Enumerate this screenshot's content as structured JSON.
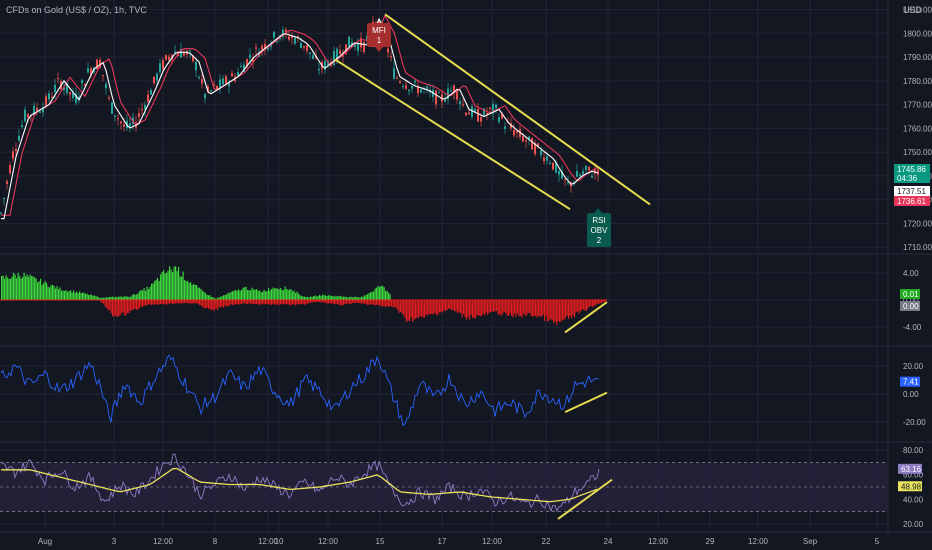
{
  "header": {
    "title": "CFDs on Gold (US$ / OZ), 1h, TVC",
    "currency": "USD"
  },
  "colors": {
    "background": "#131722",
    "grid": "#1f2433",
    "candle_up": "#26a69a",
    "candle_down": "#ef5350",
    "channel": "#e7dc4f",
    "ma_fast": "#ffffff",
    "ma_slow": "#e8365a",
    "hist_up": "#3bd63b",
    "hist_down": "#e31d1d",
    "cci_line": "#2962ff",
    "rsi_line": "#8e7cc3",
    "rsi_ma": "#e8e35b",
    "rsi_band": "#2a2440"
  },
  "chart_data": [
    {
      "type": "candlestick",
      "title": "CFDs on Gold (US$ / OZ), 1h, TVC",
      "ylabel": "USD",
      "ylim": [
        1708,
        1814
      ],
      "y_ticks": [
        "1810.00",
        "1800.00",
        "1790.00",
        "1780.00",
        "1770.00",
        "1760.00",
        "1750.00",
        "1740.00",
        "1730.00",
        "1720.00",
        "1710.00"
      ],
      "x_ticks": [
        "Aug",
        "3",
        "12:00",
        "8",
        "12:00",
        "10",
        "12:00",
        "15",
        "17",
        "12:00",
        "22",
        "24",
        "12:00",
        "29",
        "12:00",
        "Sep",
        "5"
      ],
      "close_path": [
        [
          0,
          1722
        ],
        [
          12,
          1748
        ],
        [
          25,
          1765
        ],
        [
          45,
          1770
        ],
        [
          60,
          1780
        ],
        [
          75,
          1772
        ],
        [
          90,
          1785
        ],
        [
          100,
          1788
        ],
        [
          110,
          1770
        ],
        [
          125,
          1760
        ],
        [
          135,
          1762
        ],
        [
          150,
          1775
        ],
        [
          160,
          1785
        ],
        [
          172,
          1792
        ],
        [
          185,
          1792
        ],
        [
          195,
          1788
        ],
        [
          205,
          1774
        ],
        [
          220,
          1778
        ],
        [
          235,
          1782
        ],
        [
          250,
          1790
        ],
        [
          265,
          1795
        ],
        [
          280,
          1800
        ],
        [
          295,
          1798
        ],
        [
          305,
          1795
        ],
        [
          320,
          1785
        ],
        [
          335,
          1790
        ],
        [
          350,
          1796
        ],
        [
          365,
          1795
        ],
        [
          375,
          1806
        ],
        [
          385,
          1798
        ],
        [
          395,
          1782
        ],
        [
          410,
          1778
        ],
        [
          425,
          1776
        ],
        [
          440,
          1772
        ],
        [
          455,
          1777
        ],
        [
          465,
          1768
        ],
        [
          480,
          1765
        ],
        [
          495,
          1768
        ],
        [
          505,
          1762
        ],
        [
          520,
          1757
        ],
        [
          535,
          1752
        ],
        [
          550,
          1747
        ],
        [
          560,
          1740
        ],
        [
          568,
          1736
        ],
        [
          578,
          1740
        ],
        [
          588,
          1742
        ],
        [
          596,
          1741
        ],
        [
          600,
          1745
        ]
      ],
      "channel_lines": [
        {
          "from": [
            385,
            1808
          ],
          "to": [
            650,
            1728
          ]
        },
        {
          "from": [
            335,
            1789
          ],
          "to": [
            570,
            1726
          ]
        }
      ],
      "price_labels": [
        {
          "value": "1745.86",
          "color": "#089981"
        },
        {
          "value": "04:36",
          "color": "#089981"
        },
        {
          "value": "1737.51",
          "color": "#ffffff"
        },
        {
          "value": "1736.61",
          "color": "#e8365a"
        }
      ],
      "signals": [
        {
          "label": "MFI",
          "sub": "1",
          "color": "#a52e2e"
        },
        {
          "label": "RSI",
          "sub2": "OBV",
          "sub": "2",
          "color": "#0a5a4e"
        }
      ]
    },
    {
      "type": "bar",
      "y_ticks": [
        "4.00",
        "0.00",
        "-4.00"
      ],
      "ylim": [
        -6.5,
        6.5
      ],
      "labels": [
        {
          "value": "0.01",
          "color": "#22ab22"
        },
        {
          "value": "0.00",
          "color": "#787b86"
        }
      ],
      "shape_up": [
        [
          0,
          3.5
        ],
        [
          20,
          4.2
        ],
        [
          40,
          3.0
        ],
        [
          60,
          1.8
        ],
        [
          80,
          1.2
        ],
        [
          100,
          0.4
        ],
        [
          130,
          0.6
        ],
        [
          150,
          2.2
        ],
        [
          165,
          4.6
        ],
        [
          175,
          5.4
        ],
        [
          185,
          3.6
        ],
        [
          200,
          1.6
        ],
        [
          215,
          0.2
        ],
        [
          230,
          1.2
        ],
        [
          245,
          2.0
        ],
        [
          260,
          1.4
        ],
        [
          275,
          2.1
        ],
        [
          290,
          1.8
        ],
        [
          305,
          0.4
        ],
        [
          320,
          0.8
        ],
        [
          340,
          0.6
        ],
        [
          360,
          0.4
        ],
        [
          372,
          1.5
        ],
        [
          380,
          2.4
        ],
        [
          390,
          1.0
        ]
      ],
      "shape_down": [
        [
          100,
          -0.2
        ],
        [
          115,
          -2.8
        ],
        [
          130,
          -2.0
        ],
        [
          145,
          -0.8
        ],
        [
          195,
          -0.5
        ],
        [
          210,
          -1.8
        ],
        [
          225,
          -1.0
        ],
        [
          240,
          -0.6
        ],
        [
          300,
          -0.8
        ],
        [
          315,
          -0.3
        ],
        [
          340,
          -0.8
        ],
        [
          355,
          -0.5
        ],
        [
          395,
          -1.2
        ],
        [
          405,
          -3.2
        ],
        [
          420,
          -3.0
        ],
        [
          435,
          -2.2
        ],
        [
          450,
          -1.5
        ],
        [
          465,
          -2.8
        ],
        [
          480,
          -2.6
        ],
        [
          495,
          -2.0
        ],
        [
          510,
          -2.6
        ],
        [
          530,
          -2.4
        ],
        [
          545,
          -3.0
        ],
        [
          555,
          -4.0
        ],
        [
          565,
          -3.2
        ],
        [
          580,
          -2.0
        ],
        [
          595,
          -0.8
        ],
        [
          605,
          -0.2
        ]
      ],
      "trend_line": {
        "from": [
          565,
          -4.8
        ],
        "to": [
          607,
          -0.3
        ]
      }
    },
    {
      "type": "line",
      "y_ticks": [
        "20.00",
        "0.00",
        "-20.00"
      ],
      "ylim": [
        -33,
        33
      ],
      "labels": [
        {
          "value": "7.41",
          "color": "#2962ff"
        }
      ],
      "shape": [
        [
          0,
          10
        ],
        [
          15,
          20
        ],
        [
          30,
          6
        ],
        [
          45,
          14
        ],
        [
          60,
          2
        ],
        [
          75,
          10
        ],
        [
          90,
          22
        ],
        [
          100,
          6
        ],
        [
          110,
          -18
        ],
        [
          125,
          8
        ],
        [
          140,
          -6
        ],
        [
          155,
          12
        ],
        [
          170,
          26
        ],
        [
          185,
          8
        ],
        [
          200,
          -10
        ],
        [
          215,
          -2
        ],
        [
          230,
          14
        ],
        [
          245,
          4
        ],
        [
          260,
          18
        ],
        [
          275,
          2
        ],
        [
          290,
          -8
        ],
        [
          305,
          10
        ],
        [
          320,
          2
        ],
        [
          335,
          -12
        ],
        [
          350,
          4
        ],
        [
          365,
          14
        ],
        [
          378,
          28
        ],
        [
          390,
          4
        ],
        [
          405,
          -24
        ],
        [
          420,
          8
        ],
        [
          435,
          -4
        ],
        [
          450,
          12
        ],
        [
          465,
          -8
        ],
        [
          480,
          2
        ],
        [
          495,
          -12
        ],
        [
          510,
          -6
        ],
        [
          525,
          -14
        ],
        [
          540,
          2
        ],
        [
          555,
          -4
        ],
        [
          565,
          -8
        ],
        [
          575,
          6
        ],
        [
          590,
          10
        ],
        [
          600,
          7
        ]
      ],
      "trend_line": {
        "from": [
          565,
          -13
        ],
        "to": [
          607,
          1
        ]
      }
    },
    {
      "type": "line",
      "y_ticks": [
        "80.00",
        "60.00",
        "40.00",
        "20.00"
      ],
      "ylim": [
        15,
        85
      ],
      "band": [
        30,
        70
      ],
      "mid": 50,
      "labels": [
        {
          "value": "63.16",
          "color": "#8e7cc3"
        },
        {
          "value": "48.98",
          "color": "#e8e35b"
        }
      ],
      "rsi_shape": [
        [
          0,
          68
        ],
        [
          15,
          62
        ],
        [
          30,
          70
        ],
        [
          45,
          56
        ],
        [
          60,
          64
        ],
        [
          75,
          50
        ],
        [
          90,
          58
        ],
        [
          105,
          38
        ],
        [
          120,
          52
        ],
        [
          135,
          44
        ],
        [
          150,
          56
        ],
        [
          165,
          70
        ],
        [
          175,
          74
        ],
        [
          185,
          64
        ],
        [
          200,
          44
        ],
        [
          215,
          52
        ],
        [
          230,
          60
        ],
        [
          245,
          48
        ],
        [
          260,
          58
        ],
        [
          275,
          50
        ],
        [
          290,
          44
        ],
        [
          305,
          54
        ],
        [
          320,
          46
        ],
        [
          335,
          58
        ],
        [
          350,
          52
        ],
        [
          365,
          62
        ],
        [
          378,
          68
        ],
        [
          390,
          50
        ],
        [
          405,
          36
        ],
        [
          420,
          46
        ],
        [
          435,
          40
        ],
        [
          450,
          50
        ],
        [
          465,
          42
        ],
        [
          480,
          48
        ],
        [
          495,
          38
        ],
        [
          510,
          42
        ],
        [
          525,
          36
        ],
        [
          540,
          40
        ],
        [
          555,
          32
        ],
        [
          565,
          36
        ],
        [
          575,
          46
        ],
        [
          590,
          54
        ],
        [
          600,
          63
        ]
      ],
      "ma_shape": [
        [
          0,
          64
        ],
        [
          30,
          64
        ],
        [
          60,
          58
        ],
        [
          90,
          52
        ],
        [
          120,
          46
        ],
        [
          150,
          52
        ],
        [
          175,
          66
        ],
        [
          200,
          54
        ],
        [
          230,
          52
        ],
        [
          260,
          52
        ],
        [
          290,
          48
        ],
        [
          320,
          50
        ],
        [
          350,
          54
        ],
        [
          378,
          60
        ],
        [
          400,
          46
        ],
        [
          430,
          44
        ],
        [
          460,
          46
        ],
        [
          490,
          42
        ],
        [
          520,
          40
        ],
        [
          550,
          38
        ],
        [
          570,
          40
        ],
        [
          590,
          46
        ],
        [
          600,
          49
        ]
      ],
      "trend_line": {
        "from": [
          558,
          24
        ],
        "to": [
          612,
          56
        ]
      }
    }
  ]
}
